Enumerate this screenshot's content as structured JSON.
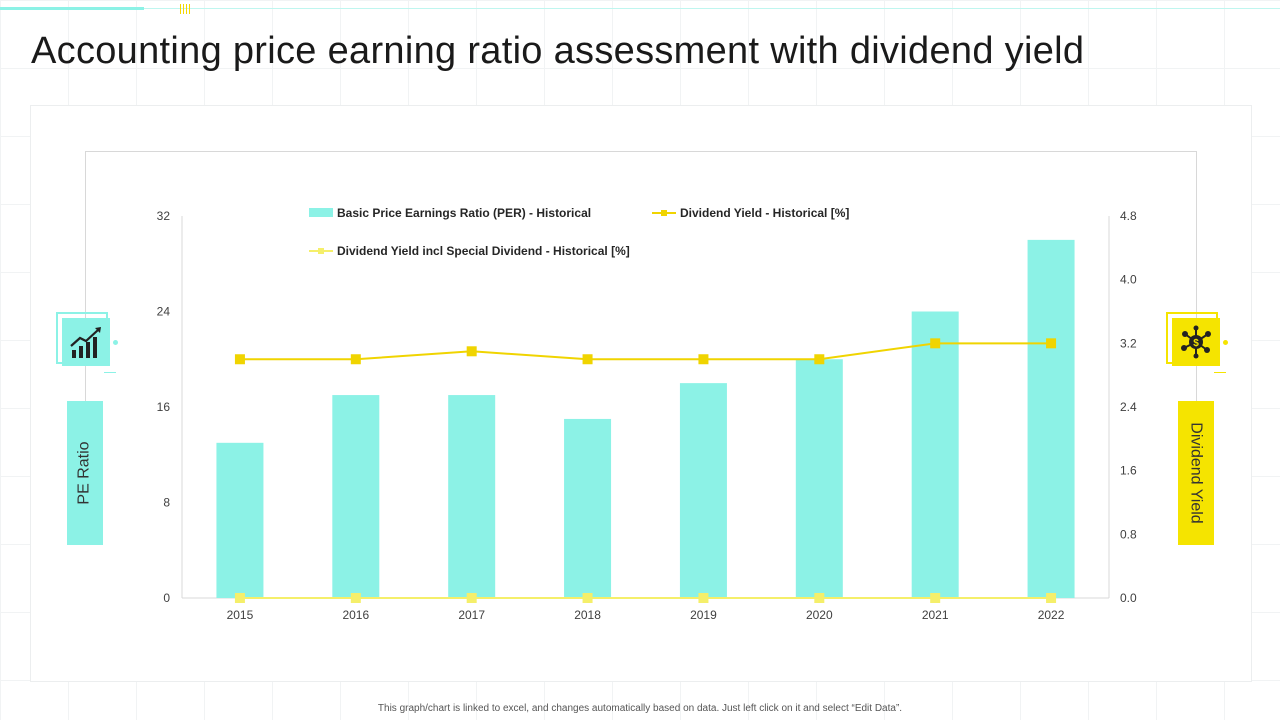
{
  "title": "Accounting price earning ratio assessment with dividend yield",
  "footnote": "This graph/chart is linked to excel, and changes automatically based on data. Just left click on it and select “Edit Data”.",
  "icons": {
    "left": "growth-chart-icon",
    "right": "dollar-network-icon"
  },
  "colors": {
    "bar": "#8cf2e6",
    "line_primary": "#f0d400",
    "line_secondary": "#f5ef6a",
    "accent_yellow": "#f5e400",
    "accent_teal": "#8cf2e6"
  },
  "chart_data": {
    "type": "bar",
    "categories": [
      "2015",
      "2016",
      "2017",
      "2018",
      "2019",
      "2020",
      "2021",
      "2022"
    ],
    "series": [
      {
        "name": "Basic Price Earnings Ratio (PER) - Historical",
        "type": "bar",
        "axis": "left",
        "values": [
          13,
          17,
          17,
          15,
          18,
          20,
          24,
          30
        ]
      },
      {
        "name": "Dividend Yield - Historical [%]",
        "type": "line",
        "axis": "right",
        "values": [
          3.0,
          3.0,
          3.1,
          3.0,
          3.0,
          3.0,
          3.2,
          3.2
        ]
      },
      {
        "name": "Dividend Yield incl Special Dividend - Historical [%]",
        "type": "line",
        "axis": "right",
        "values": [
          0,
          0,
          0,
          0,
          0,
          0,
          0,
          0
        ]
      }
    ],
    "ylabel": "PE Ratio",
    "y2label": "Dividend Yield",
    "ylim": [
      0,
      32
    ],
    "y2lim": [
      0,
      4.8
    ],
    "yticks": [
      "0",
      "8",
      "16",
      "24",
      "32"
    ],
    "y2ticks": [
      "0.0",
      "0.8",
      "1.6",
      "2.4",
      "3.2",
      "4.0",
      "4.8"
    ],
    "legend_position": "top",
    "grid": false
  }
}
